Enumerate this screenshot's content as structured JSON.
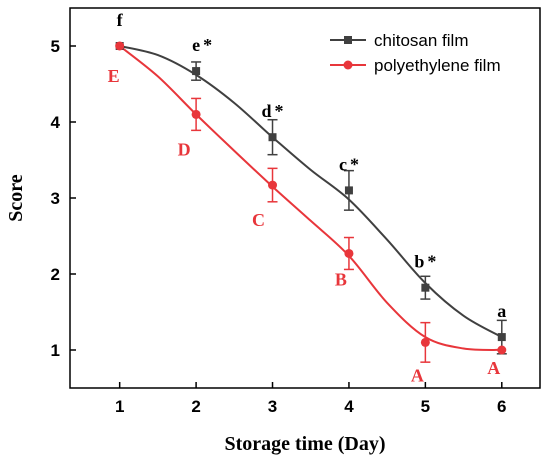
{
  "chart_data": {
    "type": "line",
    "xlabel": "Storage time (Day)",
    "ylabel": "Score",
    "xlim": [
      0.35,
      6.5
    ],
    "ylim": [
      0.5,
      5.5
    ],
    "xticks": [
      1,
      2,
      3,
      4,
      5,
      6
    ],
    "yticks": [
      1,
      2,
      3,
      4,
      5
    ],
    "legend_position": "top-right",
    "series": [
      {
        "name": "chitosan film",
        "color": "#404040",
        "marker": "square",
        "x": [
          1,
          2,
          3,
          4,
          5,
          6
        ],
        "y": [
          5.0,
          4.67,
          3.8,
          3.1,
          1.82,
          1.17
        ],
        "error": [
          0.0,
          0.12,
          0.23,
          0.26,
          0.15,
          0.22
        ],
        "point_labels": [
          "f",
          "e",
          "d",
          "c",
          "b",
          "a"
        ],
        "significance_marks": [
          "",
          "*",
          "*",
          "*",
          "*",
          ""
        ],
        "fit_curve": [
          [
            1,
            5.0
          ],
          [
            1.5,
            4.88
          ],
          [
            2,
            4.62
          ],
          [
            2.5,
            4.25
          ],
          [
            3,
            3.8
          ],
          [
            3.5,
            3.37
          ],
          [
            4,
            2.98
          ],
          [
            4.5,
            2.45
          ],
          [
            5,
            1.88
          ],
          [
            5.5,
            1.45
          ],
          [
            6,
            1.17
          ]
        ]
      },
      {
        "name": "polyethylene film",
        "color": "#e8363b",
        "marker": "circle",
        "x": [
          1,
          2,
          3,
          4,
          5,
          6
        ],
        "y": [
          5.0,
          4.1,
          3.17,
          2.27,
          1.1,
          1.0
        ],
        "error": [
          0.0,
          0.21,
          0.22,
          0.21,
          0.26,
          0.0
        ],
        "point_labels": [
          "E",
          "D",
          "C",
          "B",
          "A",
          "A"
        ],
        "fit_curve": [
          [
            1,
            5.0
          ],
          [
            1.5,
            4.6
          ],
          [
            2,
            4.1
          ],
          [
            2.5,
            3.62
          ],
          [
            3,
            3.15
          ],
          [
            3.5,
            2.7
          ],
          [
            4,
            2.24
          ],
          [
            4.5,
            1.62
          ],
          [
            5,
            1.17
          ],
          [
            5.5,
            1.02
          ],
          [
            6,
            1.0
          ]
        ]
      }
    ]
  }
}
